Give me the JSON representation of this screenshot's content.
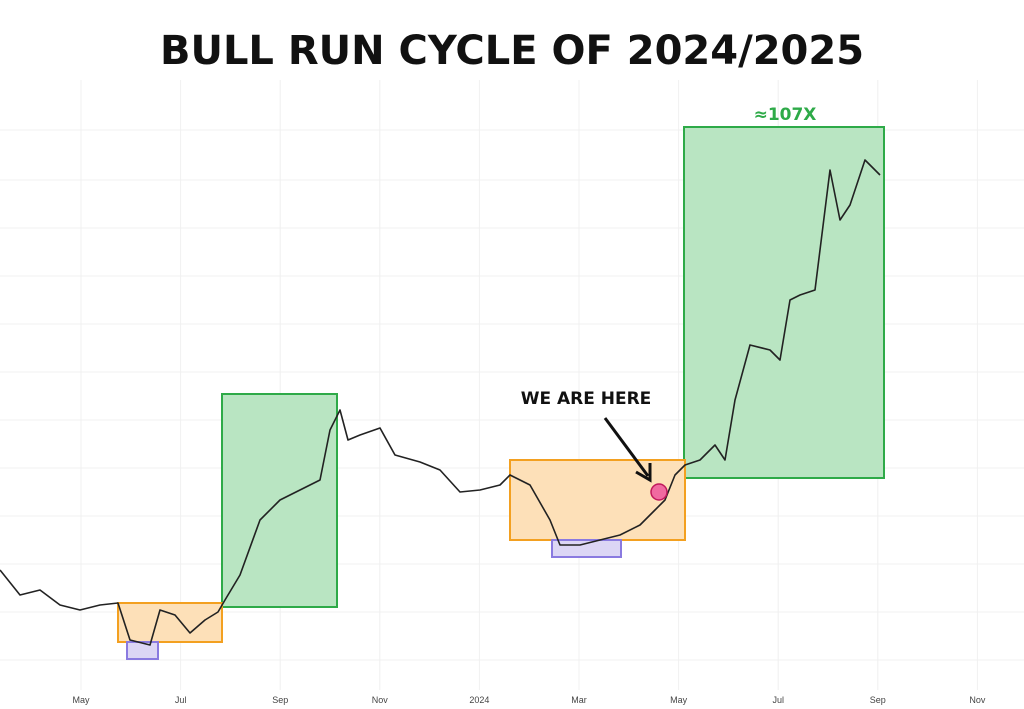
{
  "chart_data": {
    "type": "candlestick",
    "title": "BULL RUN CYCLE OF 2024/2025",
    "categories": [
      "May",
      "Jul",
      "Sep",
      "Nov",
      "2024",
      "Mar",
      "May",
      "Jul",
      "Sep",
      "Nov"
    ],
    "annotations": [
      "≈107X",
      "WE ARE HERE"
    ]
  }
}
